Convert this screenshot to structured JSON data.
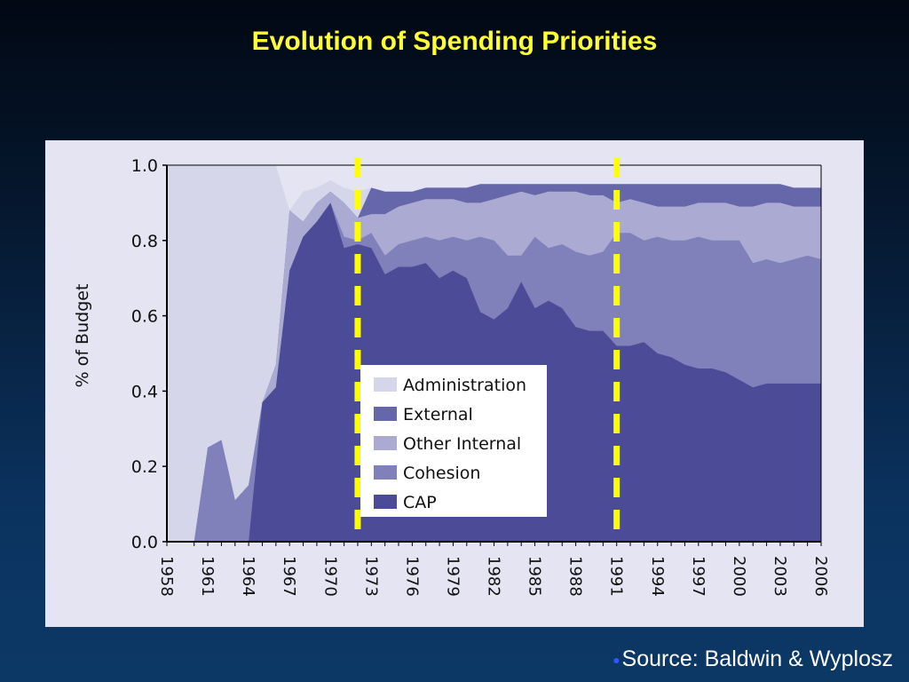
{
  "slide": {
    "title": "Evolution of Spending Priorities",
    "source": "Source: Baldwin & Wyplosz"
  },
  "chart_data": {
    "type": "area",
    "stacked": true,
    "ylabel": "% of Budget",
    "xlabel": "",
    "ylim": [
      0,
      1.0
    ],
    "xlim": [
      1958,
      2006
    ],
    "yticks": [
      "0.0",
      "0.2",
      "0.4",
      "0.6",
      "0.8",
      "1.0"
    ],
    "xticks": [
      "1958",
      "1961",
      "1964",
      "1967",
      "1970",
      "1973",
      "1976",
      "1979",
      "1982",
      "1985",
      "1988",
      "1991",
      "1994",
      "1997",
      "2000",
      "2003",
      "2006"
    ],
    "x": [
      1958,
      1960,
      1961,
      1962,
      1963,
      1964,
      1965,
      1966,
      1967,
      1968,
      1969,
      1970,
      1971,
      1972,
      1973,
      1974,
      1975,
      1976,
      1977,
      1978,
      1979,
      1980,
      1981,
      1982,
      1983,
      1984,
      1985,
      1986,
      1987,
      1988,
      1989,
      1990,
      1991,
      1992,
      1993,
      1994,
      1995,
      1996,
      1997,
      1998,
      1999,
      2000,
      2001,
      2002,
      2003,
      2004,
      2005,
      2006
    ],
    "series": [
      {
        "name": "CAP",
        "color": "#4b4b98",
        "cumulative": [
          0,
          0,
          0,
          0,
          0,
          0,
          0.37,
          0.41,
          0.72,
          0.81,
          0.85,
          0.9,
          0.78,
          0.79,
          0.78,
          0.71,
          0.73,
          0.73,
          0.74,
          0.7,
          0.72,
          0.7,
          0.61,
          0.59,
          0.62,
          0.69,
          0.62,
          0.64,
          0.62,
          0.57,
          0.56,
          0.56,
          0.52,
          0.52,
          0.53,
          0.5,
          0.49,
          0.47,
          0.46,
          0.46,
          0.45,
          0.43,
          0.41,
          0.42,
          0.42,
          0.42,
          0.42,
          0.42
        ]
      },
      {
        "name": "Cohesion",
        "color": "#8080bb",
        "cumulative": [
          0,
          0,
          0.25,
          0.27,
          0.11,
          0.15,
          0.37,
          0.41,
          0.72,
          0.81,
          0.85,
          0.9,
          0.81,
          0.8,
          0.82,
          0.76,
          0.79,
          0.8,
          0.81,
          0.8,
          0.81,
          0.8,
          0.81,
          0.8,
          0.76,
          0.76,
          0.81,
          0.78,
          0.79,
          0.77,
          0.76,
          0.77,
          0.82,
          0.82,
          0.8,
          0.81,
          0.8,
          0.8,
          0.81,
          0.8,
          0.8,
          0.8,
          0.74,
          0.75,
          0.74,
          0.75,
          0.76,
          0.75
        ]
      },
      {
        "name": "Other Internal",
        "color": "#aaaad2",
        "cumulative": [
          0,
          0,
          0.25,
          0.27,
          0.11,
          0.15,
          0.37,
          0.47,
          0.88,
          0.85,
          0.9,
          0.93,
          0.9,
          0.86,
          0.87,
          0.87,
          0.89,
          0.9,
          0.91,
          0.91,
          0.91,
          0.9,
          0.9,
          0.91,
          0.92,
          0.93,
          0.92,
          0.93,
          0.93,
          0.93,
          0.92,
          0.92,
          0.9,
          0.91,
          0.9,
          0.89,
          0.89,
          0.89,
          0.9,
          0.9,
          0.9,
          0.89,
          0.89,
          0.9,
          0.9,
          0.89,
          0.89,
          0.89
        ]
      },
      {
        "name": "External",
        "color": "#6666aa",
        "cumulative": [
          0,
          0,
          0.25,
          0.27,
          0.11,
          0.15,
          0.37,
          0.47,
          0.88,
          0.85,
          0.9,
          0.93,
          0.9,
          0.86,
          0.94,
          0.93,
          0.93,
          0.93,
          0.94,
          0.94,
          0.94,
          0.94,
          0.95,
          0.95,
          0.95,
          0.95,
          0.95,
          0.95,
          0.95,
          0.95,
          0.95,
          0.95,
          0.95,
          0.95,
          0.95,
          0.95,
          0.95,
          0.95,
          0.95,
          0.95,
          0.95,
          0.95,
          0.95,
          0.95,
          0.95,
          0.94,
          0.94,
          0.94
        ]
      },
      {
        "name": "Administration",
        "color": "#d6d6ea",
        "cumulative": [
          1,
          1,
          1,
          1,
          1,
          1,
          1,
          1,
          0.88,
          0.93,
          0.94,
          0.96,
          0.94,
          0.93,
          0.94,
          0.93,
          0.93,
          0.93,
          0.94,
          0.94,
          0.94,
          0.94,
          0.95,
          0.95,
          0.95,
          0.95,
          0.95,
          0.95,
          0.95,
          0.95,
          0.95,
          0.95,
          0.95,
          0.95,
          0.95,
          0.95,
          0.95,
          0.95,
          0.95,
          0.95,
          0.95,
          0.95,
          0.95,
          0.95,
          0.95,
          0.94,
          0.94,
          0.94
        ]
      }
    ],
    "legend": [
      "Administration",
      "External",
      "Other Internal",
      "Cohesion",
      "CAP"
    ],
    "reference_lines": [
      {
        "x": 1972,
        "color": "#ffff00",
        "style": "dashed"
      },
      {
        "x": 1991,
        "color": "#ffff00",
        "style": "dashed"
      }
    ]
  }
}
